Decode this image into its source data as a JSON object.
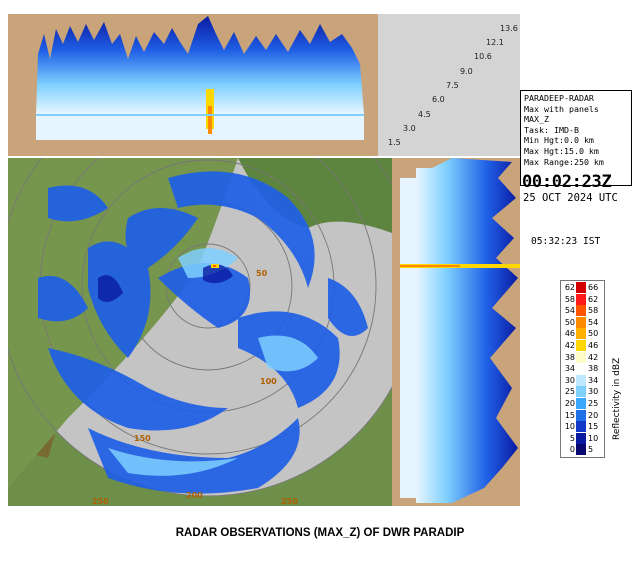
{
  "info": {
    "station": "PARADEEP-RADAR",
    "mode": "Max with panels",
    "product": "MAX_Z",
    "task": "Task: IMD-B",
    "min_hgt": "Min Hgt:0.0 km",
    "max_hgt": "Max Hgt:15.0 km",
    "max_range": "Max Range:250 km"
  },
  "time": {
    "utc": "00:02:23Z",
    "date": "25 OCT 2024 UTC",
    "ist": "05:32:23 IST"
  },
  "heights": [
    "13.6",
    "12.1",
    "10.6",
    "9.0",
    "7.5",
    "6.0",
    "4.5",
    "3.0",
    "1.5"
  ],
  "range_rings": [
    "50",
    "100",
    "150",
    "200",
    "250"
  ],
  "legend": {
    "title": "Reflectivity in dBZ",
    "rows": [
      {
        "lo": "62",
        "hi": "66",
        "color": "#d40000"
      },
      {
        "lo": "58",
        "hi": "62",
        "color": "#ff1a1a"
      },
      {
        "lo": "54",
        "hi": "58",
        "color": "#ff5500"
      },
      {
        "lo": "50",
        "hi": "54",
        "color": "#ff8c00"
      },
      {
        "lo": "46",
        "hi": "50",
        "color": "#ffb000"
      },
      {
        "lo": "42",
        "hi": "46",
        "color": "#ffd700"
      },
      {
        "lo": "38",
        "hi": "42",
        "color": "#fffbc8"
      },
      {
        "lo": "34",
        "hi": "38",
        "color": "#ffffff"
      },
      {
        "lo": "30",
        "hi": "34",
        "color": "#bfe8ff"
      },
      {
        "lo": "25",
        "hi": "30",
        "color": "#7fd0ff"
      },
      {
        "lo": "20",
        "hi": "25",
        "color": "#3aa8ff"
      },
      {
        "lo": "15",
        "hi": "20",
        "color": "#1f6fe6"
      },
      {
        "lo": "10",
        "hi": "15",
        "color": "#1238c8"
      },
      {
        "lo": "5",
        "hi": "10",
        "color": "#0a1aa0"
      },
      {
        "lo": "0",
        "hi": "5",
        "color": "#080870"
      }
    ]
  },
  "caption": "RADAR OBSERVATIONS (MAX_Z) OF DWR PARADIP",
  "colors": {
    "land": "#6e8f49",
    "sea_disc": "#c4c4c4",
    "panel_bg": "#c9a37a",
    "echo_blue": "#1f5fe6"
  }
}
